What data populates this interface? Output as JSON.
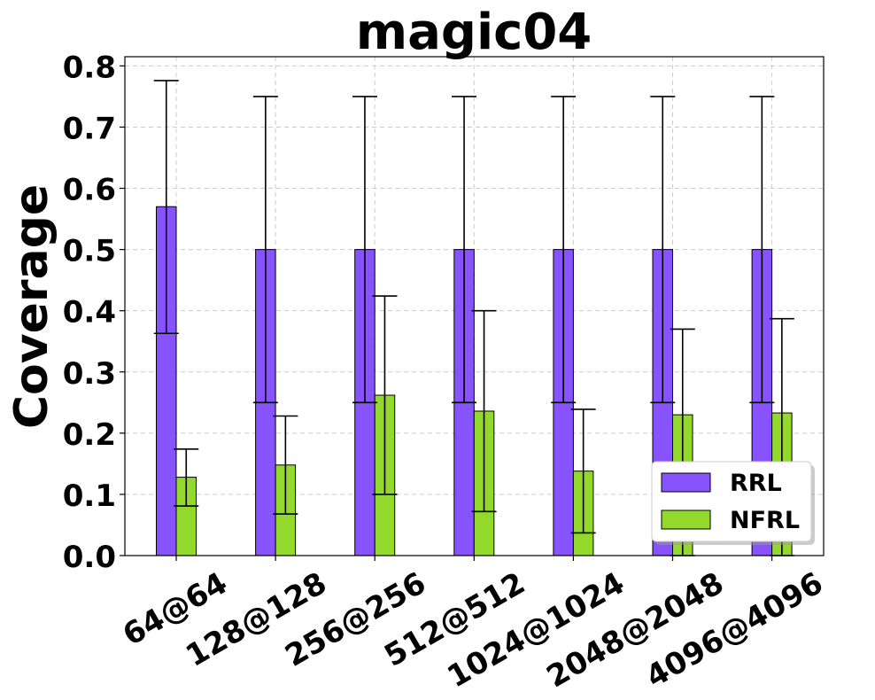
{
  "chart_data": {
    "type": "bar",
    "title": "magic04",
    "xlabel": "",
    "ylabel": "Coverage",
    "categories": [
      "64@64",
      "128@128",
      "256@256",
      "512@512",
      "1024@1024",
      "2048@2048",
      "4096@4096"
    ],
    "ylim": [
      0,
      0.815
    ],
    "yticks": [
      "0.0",
      "0.1",
      "0.2",
      "0.3",
      "0.4",
      "0.5",
      "0.6",
      "0.7",
      "0.8"
    ],
    "grid": true,
    "legend_position": "lower-right",
    "series": [
      {
        "name": "RRL",
        "color": "#8653ff",
        "values": [
          0.57,
          0.5,
          0.5,
          0.5,
          0.5,
          0.5,
          0.5
        ],
        "error_low": [
          0.363,
          0.25,
          0.25,
          0.25,
          0.25,
          0.25,
          0.25
        ],
        "error_high": [
          0.776,
          0.75,
          0.75,
          0.75,
          0.75,
          0.75,
          0.75
        ]
      },
      {
        "name": "NFRL",
        "color": "#93d92b",
        "values": [
          0.128,
          0.148,
          0.262,
          0.236,
          0.138,
          0.23,
          0.233
        ],
        "error_low": [
          0.081,
          0.068,
          0.1,
          0.072,
          0.037,
          0.0,
          0.0
        ],
        "error_high": [
          0.174,
          0.228,
          0.424,
          0.4,
          0.239,
          0.37,
          0.387
        ]
      }
    ]
  }
}
